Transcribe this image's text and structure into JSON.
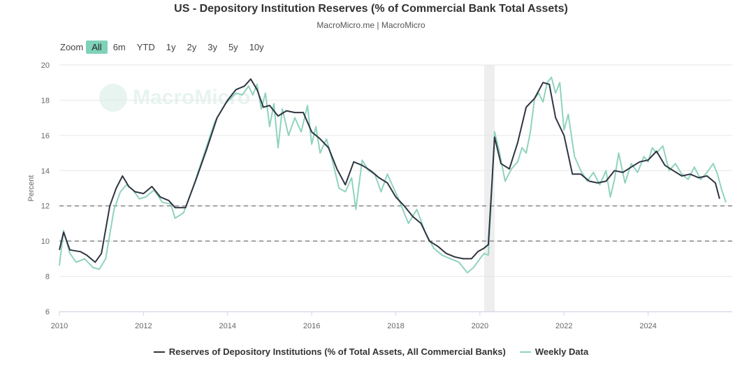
{
  "header": {
    "title": "US - Depository Institution Reserves (% of Commercial Bank Total Assets)",
    "subtitle": "MacroMicro.me | MacroMicro"
  },
  "zoom": {
    "label": "Zoom",
    "buttons": [
      "All",
      "6m",
      "YTD",
      "1y",
      "2y",
      "3y",
      "5y",
      "10y"
    ],
    "active": "All"
  },
  "watermark": {
    "text": "MacroMicro"
  },
  "colors": {
    "main": "#2f3540",
    "weekly": "#8fd3bd",
    "shade": "#eeeeee",
    "grid": "#e6e6e6",
    "ref": "#888888"
  },
  "chart_data": {
    "type": "line",
    "title": "US - Depository Institution Reserves (% of Commercial Bank Total Assets)",
    "ylabel": "Percent",
    "xlim": [
      2010,
      2026.0
    ],
    "ylim": [
      6,
      20
    ],
    "xticks": [
      2010,
      2012,
      2014,
      2016,
      2018,
      2020,
      2022,
      2024
    ],
    "yticks": [
      6,
      8,
      10,
      12,
      14,
      16,
      18,
      20
    ],
    "reference_lines": [
      10,
      12
    ],
    "shaded_regions": [
      [
        2020.1,
        2020.35
      ]
    ],
    "legend": {
      "position": "bottom-center"
    },
    "series": [
      {
        "name": "Reserves of Depository Institutions (% of Total Assets, All Commercial Banks)",
        "x": [
          2010.0,
          2010.1,
          2010.25,
          2010.5,
          2010.65,
          2010.85,
          2011.0,
          2011.2,
          2011.35,
          2011.5,
          2011.65,
          2011.8,
          2012.0,
          2012.2,
          2012.4,
          2012.6,
          2012.75,
          2013.0,
          2013.25,
          2013.5,
          2013.75,
          2014.0,
          2014.2,
          2014.4,
          2014.55,
          2014.7,
          2014.85,
          2015.0,
          2015.2,
          2015.4,
          2015.6,
          2015.8,
          2016.0,
          2016.2,
          2016.4,
          2016.6,
          2016.8,
          2017.0,
          2017.2,
          2017.4,
          2017.6,
          2017.8,
          2018.0,
          2018.2,
          2018.4,
          2018.6,
          2018.8,
          2019.0,
          2019.2,
          2019.4,
          2019.6,
          2019.8,
          2019.95,
          2020.1,
          2020.2,
          2020.28,
          2020.35,
          2020.5,
          2020.7,
          2020.9,
          2021.1,
          2021.3,
          2021.5,
          2021.65,
          2021.8,
          2022.0,
          2022.2,
          2022.4,
          2022.6,
          2022.8,
          2023.0,
          2023.2,
          2023.4,
          2023.6,
          2023.8,
          2024.0,
          2024.2,
          2024.4,
          2024.6,
          2024.8,
          2025.0,
          2025.2,
          2025.4,
          2025.6,
          2025.7
        ],
        "values": [
          9.5,
          10.5,
          9.5,
          9.4,
          9.2,
          8.8,
          9.3,
          12.0,
          13.0,
          13.7,
          13.1,
          12.8,
          12.7,
          13.1,
          12.5,
          12.3,
          11.9,
          11.9,
          13.5,
          15.2,
          17.0,
          18.0,
          18.6,
          18.8,
          19.2,
          18.6,
          17.6,
          17.7,
          17.1,
          17.4,
          17.3,
          17.3,
          16.2,
          15.8,
          15.3,
          14.1,
          13.2,
          14.5,
          14.3,
          14.0,
          13.6,
          13.3,
          12.5,
          12.0,
          11.4,
          11.0,
          10.0,
          9.7,
          9.3,
          9.1,
          9.0,
          9.0,
          9.4,
          9.6,
          9.8,
          13.0,
          15.9,
          14.4,
          14.1,
          15.6,
          17.6,
          18.1,
          19.0,
          18.9,
          17.0,
          16.0,
          13.8,
          13.8,
          13.4,
          13.3,
          13.4,
          14.0,
          13.9,
          14.2,
          14.5,
          14.6,
          15.1,
          14.3,
          14.0,
          13.7,
          13.8,
          13.6,
          13.7,
          13.3,
          12.4
        ]
      },
      {
        "name": "Weekly Data",
        "x": [
          2010.0,
          2010.1,
          2010.25,
          2010.4,
          2010.6,
          2010.8,
          2010.95,
          2011.1,
          2011.3,
          2011.45,
          2011.6,
          2011.75,
          2011.9,
          2012.05,
          2012.25,
          2012.45,
          2012.65,
          2012.75,
          2012.95,
          2013.2,
          2013.45,
          2013.7,
          2013.95,
          2014.2,
          2014.35,
          2014.5,
          2014.6,
          2014.7,
          2014.8,
          2014.9,
          2015.0,
          2015.1,
          2015.2,
          2015.3,
          2015.45,
          2015.6,
          2015.75,
          2015.9,
          2016.0,
          2016.1,
          2016.2,
          2016.35,
          2016.5,
          2016.65,
          2016.8,
          2016.95,
          2017.05,
          2017.2,
          2017.35,
          2017.5,
          2017.65,
          2017.8,
          2017.95,
          2018.1,
          2018.3,
          2018.5,
          2018.7,
          2018.9,
          2019.1,
          2019.3,
          2019.5,
          2019.7,
          2019.85,
          2020.0,
          2020.1,
          2020.2,
          2020.28,
          2020.35,
          2020.45,
          2020.6,
          2020.75,
          2020.9,
          2021.0,
          2021.1,
          2021.2,
          2021.3,
          2021.4,
          2021.5,
          2021.6,
          2021.7,
          2021.8,
          2021.9,
          2022.0,
          2022.1,
          2022.25,
          2022.4,
          2022.55,
          2022.7,
          2022.85,
          2023.0,
          2023.1,
          2023.2,
          2023.3,
          2023.45,
          2023.6,
          2023.75,
          2023.9,
          2024.0,
          2024.1,
          2024.2,
          2024.35,
          2024.5,
          2024.65,
          2024.8,
          2024.95,
          2025.1,
          2025.25,
          2025.4,
          2025.55,
          2025.65,
          2025.75,
          2025.85
        ],
        "values": [
          8.6,
          10.6,
          9.3,
          8.8,
          9.0,
          8.5,
          8.4,
          9.0,
          11.8,
          12.8,
          13.2,
          12.9,
          12.4,
          12.5,
          12.9,
          12.2,
          12.1,
          11.3,
          11.6,
          13.2,
          15.0,
          16.8,
          17.8,
          18.4,
          18.3,
          18.8,
          18.3,
          18.9,
          17.5,
          18.4,
          16.5,
          17.8,
          15.3,
          17.5,
          16.0,
          17.0,
          16.2,
          17.7,
          15.5,
          16.5,
          15.0,
          15.8,
          14.5,
          13.0,
          12.8,
          13.6,
          11.8,
          14.6,
          14.0,
          13.8,
          12.8,
          13.8,
          13.0,
          12.2,
          11.0,
          11.8,
          10.5,
          9.6,
          9.2,
          9.0,
          8.8,
          8.2,
          8.5,
          9.0,
          9.3,
          9.2,
          12.8,
          16.2,
          15.2,
          13.4,
          14.1,
          14.5,
          15.3,
          15.0,
          16.2,
          18.1,
          18.4,
          17.9,
          19.0,
          19.3,
          18.4,
          19.0,
          16.3,
          17.2,
          14.8,
          14.0,
          13.4,
          13.9,
          13.2,
          14.0,
          12.5,
          13.5,
          15.0,
          13.3,
          14.4,
          13.9,
          14.8,
          14.5,
          15.3,
          15.0,
          15.4,
          14.0,
          14.4,
          13.8,
          13.5,
          14.2,
          13.5,
          13.9,
          14.4,
          13.8,
          12.9,
          12.2
        ]
      }
    ]
  },
  "legend_labels": {
    "main": "Reserves of Depository Institutions (% of Total Assets, All Commercial Banks)",
    "weekly": "Weekly Data"
  }
}
